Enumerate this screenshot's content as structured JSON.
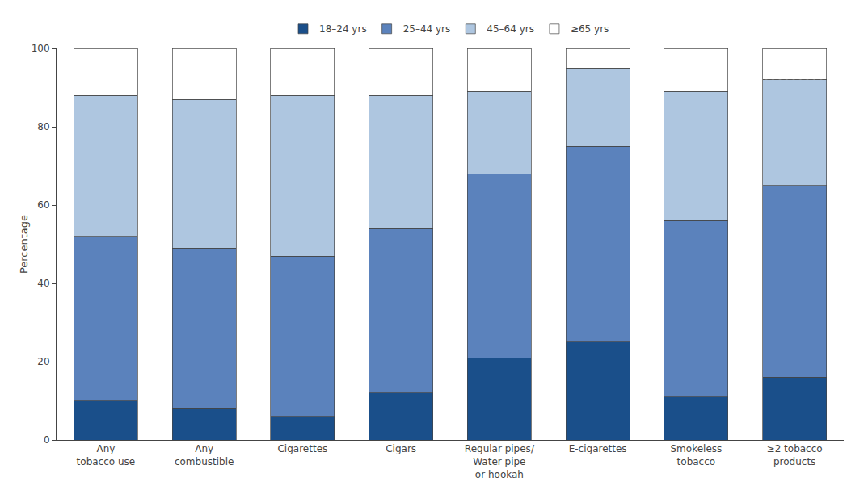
{
  "chart_data": {
    "type": "bar",
    "stacked": true,
    "ylabel": "Percentage",
    "categories": [
      "Any\ntobacco use",
      "Any\ncombustible",
      "Cigarettes",
      "Cigars",
      "Regular pipes/\nWater pipe\nor hookah",
      "E-cigarettes",
      "Smokeless\ntobacco",
      "≥2 tobacco\nproducts"
    ],
    "series": [
      {
        "name": "18–24 yrs",
        "color": "#1a4f8a",
        "values": [
          10,
          8,
          6,
          12,
          21,
          25,
          11,
          16
        ]
      },
      {
        "name": "25–44 yrs",
        "color": "#5b82bc",
        "values": [
          42,
          41,
          41,
          42,
          47,
          50,
          45,
          49
        ]
      },
      {
        "name": "45–64 yrs",
        "color": "#aec6e0",
        "values": [
          36,
          38,
          41,
          34,
          21,
          20,
          33,
          27
        ]
      },
      {
        "name": "≥65 yrs",
        "color": "#ffffff",
        "values": [
          12,
          13,
          12,
          12,
          11,
          5,
          11,
          8
        ]
      }
    ],
    "ylim": [
      0,
      100
    ],
    "yticks": [
      0,
      20,
      40,
      60,
      80,
      100
    ],
    "grid": false,
    "legend": "top"
  }
}
